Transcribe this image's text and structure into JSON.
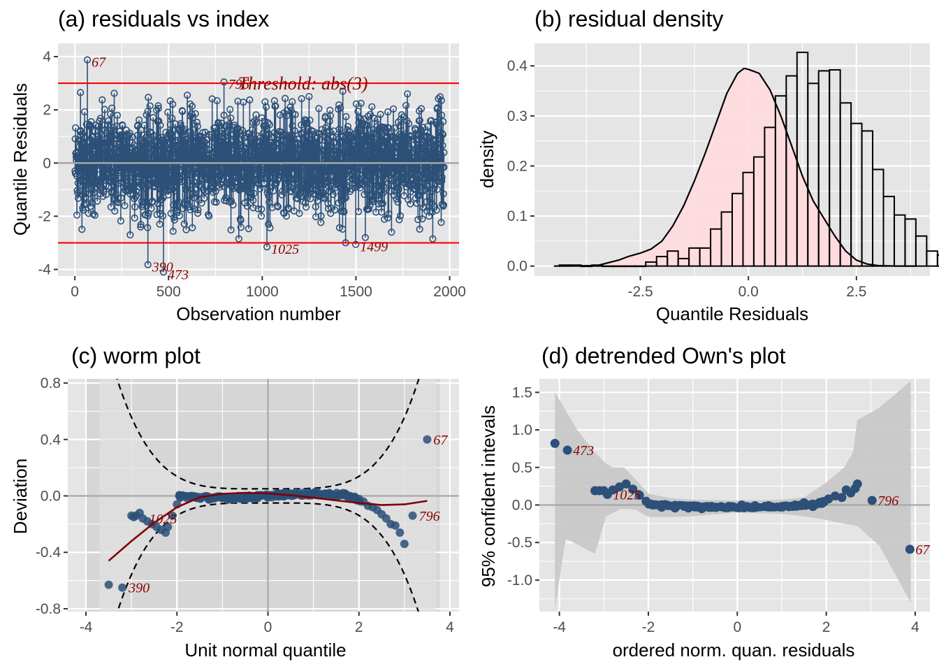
{
  "colors": {
    "panel_bg": "#e5e5e5",
    "grid": "#ffffff",
    "point": "#2c5078",
    "threshold": "#ff0000",
    "annotation": "#8b0000",
    "hist_fill": "#ffdade",
    "hist_outline": "#3b0a0a",
    "zero_line": "#a6a6a6",
    "band": "#c6c6c6",
    "worm_band": "#d6d6d6",
    "smooth": "#800000"
  },
  "chart_data": [
    {
      "id": "a",
      "type": "scatter",
      "title": "(a) residuals vs index",
      "xlabel": "Observation number",
      "ylabel": "Quantile Residuals",
      "xlim": [
        -90,
        2050
      ],
      "ylim": [
        -4.25,
        4.5
      ],
      "xticks": [
        0,
        500,
        1000,
        1500,
        2000
      ],
      "xtick_labels": [
        "0",
        "500",
        "1000",
        "1500",
        "2000"
      ],
      "yticks": [
        -4,
        -2,
        0,
        2,
        4
      ],
      "ytick_labels": [
        "-4",
        "-2",
        "0",
        "2",
        "4"
      ],
      "n_observations": 1970,
      "style": "lollipop stems from 0 with open circles",
      "threshold": {
        "value": 3,
        "label": "Threshold: abs(3)"
      },
      "highlighted": [
        {
          "obs": 67,
          "value": 3.88,
          "label": "67"
        },
        {
          "obs": 796,
          "value": 3.05,
          "label": "796"
        },
        {
          "obs": 390,
          "value": -3.82,
          "label": "390"
        },
        {
          "obs": 473,
          "value": -4.1,
          "label": "473"
        },
        {
          "obs": 1025,
          "value": -3.15,
          "label": "1025"
        },
        {
          "obs": 1445,
          "value": -3.0,
          "label": ""
        },
        {
          "obs": 1499,
          "value": -3.06,
          "label": "1499"
        }
      ],
      "notable_peaks": [
        {
          "obs": 30,
          "value": 2.65
        },
        {
          "obs": 210,
          "value": 2.62
        },
        {
          "obs": 445,
          "value": 2.15
        },
        {
          "obs": 600,
          "value": 2.55
        },
        {
          "obs": 1015,
          "value": 2.3
        },
        {
          "obs": 1250,
          "value": 2.5
        },
        {
          "obs": 1430,
          "value": 2.7
        },
        {
          "obs": 1775,
          "value": 2.6
        },
        {
          "obs": 1940,
          "value": 2.42
        },
        {
          "obs": 295,
          "value": -2.7
        },
        {
          "obs": 875,
          "value": -2.85
        },
        {
          "obs": 1910,
          "value": -2.85
        },
        {
          "obs": 1550,
          "value": -2.8
        },
        {
          "obs": 1690,
          "value": -2.6
        }
      ]
    },
    {
      "id": "b",
      "type": "bar",
      "title": "(b) residual density",
      "xlabel": "Quantile Residuals",
      "ylabel": "density",
      "xlim": [
        -4.95,
        4.2
      ],
      "ylim": [
        -0.02,
        0.445
      ],
      "xticks": [
        -2.5,
        0.0,
        2.5
      ],
      "xtick_labels": [
        "-2.5",
        "0.0",
        "2.5"
      ],
      "yticks": [
        0.0,
        0.1,
        0.2,
        0.3,
        0.4
      ],
      "ytick_labels": [
        "0.0",
        "0.1",
        "0.2",
        "0.3",
        "0.4"
      ],
      "bin_width": 0.25,
      "bin_start": -4.375,
      "histogram_density": [
        0.002,
        0.002,
        0.0,
        0.002,
        0.0,
        0.0,
        0.0,
        0.0,
        0.008,
        0.019,
        0.03,
        0.015,
        0.036,
        0.036,
        0.074,
        0.108,
        0.145,
        0.187,
        0.218,
        0.277,
        0.34,
        0.38,
        0.427,
        0.365,
        0.39,
        0.392,
        0.326,
        0.285,
        0.27,
        0.193,
        0.139,
        0.102,
        0.094,
        0.06,
        0.03,
        0.022,
        0.012,
        0.004,
        0.001,
        0.0,
        0.0,
        0.0,
        0.0,
        0.0,
        0.002,
        0.002
      ],
      "density_curve": {
        "x": [
          -4.5,
          -3.5,
          -3.0,
          -2.75,
          -2.5,
          -2.25,
          -2.0,
          -1.75,
          -1.5,
          -1.25,
          -1.0,
          -0.75,
          -0.5,
          -0.25,
          -0.1,
          0.0,
          0.25,
          0.5,
          0.75,
          1.0,
          1.25,
          1.5,
          1.75,
          2.0,
          2.25,
          2.5,
          2.75,
          3.0,
          3.5,
          3.9
        ],
        "y": [
          0.0,
          0.001,
          0.012,
          0.02,
          0.026,
          0.034,
          0.05,
          0.08,
          0.12,
          0.17,
          0.225,
          0.285,
          0.345,
          0.385,
          0.395,
          0.393,
          0.385,
          0.352,
          0.3,
          0.24,
          0.18,
          0.13,
          0.095,
          0.06,
          0.03,
          0.012,
          0.004,
          0.001,
          0.0,
          0.0
        ]
      }
    },
    {
      "id": "c",
      "type": "scatter",
      "title": "(c) worm plot",
      "xlabel": "Unit normal quantile",
      "ylabel": "Deviation",
      "xlim": [
        -4.4,
        4.2
      ],
      "ylim": [
        -0.82,
        0.83
      ],
      "xticks": [
        -4,
        -2,
        0,
        2,
        4
      ],
      "xtick_labels": [
        "-4",
        "-2",
        "0",
        "2",
        "4"
      ],
      "yticks": [
        -0.8,
        -0.4,
        0.0,
        0.4,
        0.8
      ],
      "ytick_labels": [
        "-0.8",
        "-0.4",
        "0.0",
        "0.4",
        "0.8"
      ],
      "band_xlim": [
        -4.0,
        3.78
      ],
      "ci_curve_description": "dashed ± 95% limits, ~0.05 near 0, diverging in tails",
      "smooth_curve": {
        "x": [
          -3.5,
          -3.0,
          -2.5,
          -2.0,
          -1.5,
          -1.0,
          -0.5,
          0.0,
          0.5,
          1.0,
          1.5,
          2.0,
          2.5,
          3.0,
          3.5
        ],
        "y": [
          -0.46,
          -0.32,
          -0.19,
          -0.08,
          -0.01,
          0.015,
          0.022,
          0.018,
          0.005,
          -0.013,
          -0.032,
          -0.05,
          -0.065,
          -0.06,
          -0.035
        ]
      },
      "points": [
        {
          "x": -3.5,
          "y": -0.63
        },
        {
          "x": -3.2,
          "y": -0.65,
          "label": "390"
        },
        {
          "x": -3.0,
          "y": -0.14
        },
        {
          "x": -2.95,
          "y": -0.15
        },
        {
          "x": -2.9,
          "y": -0.14
        },
        {
          "x": -2.82,
          "y": -0.12
        },
        {
          "x": -2.75,
          "y": -0.16,
          "label": "1025"
        },
        {
          "x": -2.65,
          "y": -0.18
        },
        {
          "x": -2.55,
          "y": -0.2
        },
        {
          "x": -2.45,
          "y": -0.22
        },
        {
          "x": -2.35,
          "y": -0.24
        },
        {
          "x": -2.25,
          "y": -0.26
        },
        {
          "x": -2.2,
          "y": -0.22
        },
        {
          "x": -2.1,
          "y": -0.14
        },
        {
          "x": -2.0,
          "y": -0.06
        },
        {
          "x": -1.95,
          "y": 0.0
        },
        {
          "x": 2.1,
          "y": -0.04
        },
        {
          "x": 2.2,
          "y": -0.07
        },
        {
          "x": 2.3,
          "y": -0.08
        },
        {
          "x": 2.4,
          "y": -0.1
        },
        {
          "x": 2.5,
          "y": -0.13
        },
        {
          "x": 2.6,
          "y": -0.16
        },
        {
          "x": 2.7,
          "y": -0.2
        },
        {
          "x": 2.8,
          "y": -0.21
        },
        {
          "x": 2.9,
          "y": -0.26
        },
        {
          "x": 3.0,
          "y": -0.34
        },
        {
          "x": 3.18,
          "y": -0.14,
          "label": "796"
        },
        {
          "x": 3.5,
          "y": 0.4,
          "label": "67"
        }
      ]
    },
    {
      "id": "d",
      "type": "scatter",
      "title": "(d) detrended Own's plot",
      "xlabel": "ordered norm. quan. residuals",
      "ylabel": "95% confident intevals",
      "xlim": [
        -4.45,
        4.33
      ],
      "ylim": [
        -1.42,
        1.68
      ],
      "xticks": [
        -4,
        -2,
        0,
        2,
        4
      ],
      "xtick_labels": [
        "-4",
        "-2",
        "0",
        "2",
        "4"
      ],
      "yticks": [
        -1.0,
        -0.5,
        0.0,
        0.5,
        1.0,
        1.5
      ],
      "ytick_labels": [
        "-1.0",
        "-0.5",
        "0.0",
        "0.5",
        "1.0",
        "1.5"
      ],
      "band_upper": {
        "x": [
          -4.1,
          -3.9,
          -3.6,
          -3.2,
          -2.95,
          -2.8,
          -2.55,
          -2.3,
          -2.0,
          -1.5,
          -1.0,
          0.0,
          1.0,
          1.5,
          2.0,
          2.2,
          2.4,
          2.6,
          2.7,
          3.2,
          3.9
        ],
        "y": [
          1.5,
          1.3,
          1.0,
          0.7,
          0.55,
          0.5,
          0.5,
          0.35,
          0.15,
          0.09,
          0.07,
          0.06,
          0.07,
          0.1,
          0.3,
          0.4,
          0.5,
          0.7,
          1.13,
          1.3,
          1.65
        ]
      },
      "band_lower": {
        "x": [
          -4.1,
          -3.9,
          -3.85,
          -3.2,
          -3.05,
          -2.95,
          -2.6,
          -2.3,
          -2.0,
          -1.5,
          -1.0,
          0.0,
          1.0,
          1.5,
          2.0,
          2.4,
          2.7,
          3.2,
          3.9
        ],
        "y": [
          -1.4,
          -0.6,
          -0.45,
          -0.65,
          -0.35,
          -0.15,
          -0.05,
          -0.06,
          -0.16,
          -0.16,
          -0.15,
          -0.1,
          -0.12,
          -0.15,
          -0.2,
          -0.25,
          -0.28,
          -0.55,
          -1.3
        ]
      },
      "points": [
        {
          "x": -4.1,
          "y": 0.82
        },
        {
          "x": -3.82,
          "y": 0.73,
          "label": "473"
        },
        {
          "x": -3.2,
          "y": 0.19
        },
        {
          "x": -3.1,
          "y": 0.19
        },
        {
          "x": -3.0,
          "y": 0.19
        },
        {
          "x": -2.92,
          "y": 0.14,
          "label": "1025"
        },
        {
          "x": -2.8,
          "y": 0.2
        },
        {
          "x": -2.65,
          "y": 0.24
        },
        {
          "x": -2.5,
          "y": 0.28
        },
        {
          "x": -2.35,
          "y": 0.21
        },
        {
          "x": -2.2,
          "y": 0.13
        },
        {
          "x": -2.05,
          "y": 0.05
        },
        {
          "x": -1.9,
          "y": 0.0
        },
        {
          "x": -1.7,
          "y": -0.03
        },
        {
          "x": -1.4,
          "y": -0.04
        },
        {
          "x": -1.1,
          "y": -0.04
        },
        {
          "x": -0.8,
          "y": -0.05
        },
        {
          "x": -0.5,
          "y": -0.03
        },
        {
          "x": -0.2,
          "y": -0.02
        },
        {
          "x": 0.1,
          "y": 0.0
        },
        {
          "x": 0.4,
          "y": -0.01
        },
        {
          "x": 0.7,
          "y": -0.01
        },
        {
          "x": 1.0,
          "y": -0.02
        },
        {
          "x": 1.3,
          "y": 0.0
        },
        {
          "x": 1.5,
          "y": 0.03
        },
        {
          "x": 1.7,
          "y": -0.02
        },
        {
          "x": 1.9,
          "y": 0.02
        },
        {
          "x": 2.05,
          "y": 0.08
        },
        {
          "x": 2.2,
          "y": 0.12
        },
        {
          "x": 2.35,
          "y": 0.1
        },
        {
          "x": 2.45,
          "y": 0.2
        },
        {
          "x": 2.55,
          "y": 0.16
        },
        {
          "x": 2.65,
          "y": 0.22
        },
        {
          "x": 2.7,
          "y": 0.28
        },
        {
          "x": 3.03,
          "y": 0.06,
          "label": "796"
        },
        {
          "x": 3.88,
          "y": -0.59,
          "label": "67"
        }
      ]
    }
  ]
}
